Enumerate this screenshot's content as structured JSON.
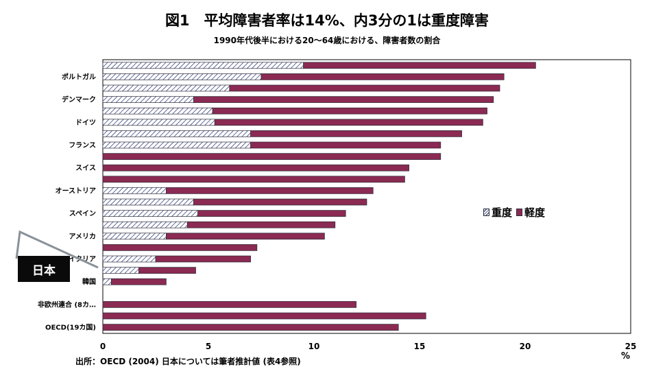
{
  "title": "図1　平均障害者率は14%、内3分の1は重度障害",
  "subtitle": "1990年代後半における20～64歳における、障害者数の割合",
  "callout_label": "日本",
  "unit_label": "%",
  "source_text": "出所：OECD (2004) 日本については筆者推計値 (表4参照)",
  "legend": {
    "severe": "重度",
    "mild": "軽度"
  },
  "colors": {
    "mild": "#8b2a52",
    "severe_hatch": "#1f2b6b"
  },
  "chart_data": {
    "type": "bar",
    "orientation": "horizontal",
    "stacked": true,
    "title": "図1　平均障害者率は14%、内3分の1は重度障害",
    "subtitle": "1990年代後半における20～64歳における、障害者数の割合",
    "xlabel": "%",
    "xlim": [
      0,
      25
    ],
    "xticks": [
      0,
      5,
      10,
      15,
      20,
      25
    ],
    "grid": false,
    "legend_position": "right",
    "categories": [
      "",
      "ポルトガル",
      "",
      "デンマーク",
      "",
      "ドイツ",
      "",
      "フランス",
      "",
      "スイス",
      "",
      "オーストリア",
      "",
      "スペイン",
      "",
      "アメリカ",
      "",
      "イタリア",
      "",
      "韓国",
      "",
      "非欧州連合 (8カ…",
      "",
      "OECD(19カ国)"
    ],
    "series": [
      {
        "name": "重度",
        "values": [
          9.5,
          7.5,
          6.0,
          4.3,
          5.2,
          5.3,
          7.0,
          7.0,
          0,
          0,
          0,
          3.0,
          4.3,
          4.5,
          4.0,
          3.0,
          0,
          2.5,
          1.7,
          0.4,
          null,
          null,
          null,
          null
        ]
      },
      {
        "name": "軽度",
        "values": [
          11.0,
          11.5,
          12.8,
          14.2,
          13.0,
          12.7,
          10.0,
          9.0,
          16.0,
          14.5,
          14.3,
          9.8,
          8.2,
          7.0,
          7.0,
          7.5,
          7.3,
          4.5,
          2.7,
          2.6,
          null,
          12.0,
          15.3,
          14.0
        ]
      }
    ]
  }
}
